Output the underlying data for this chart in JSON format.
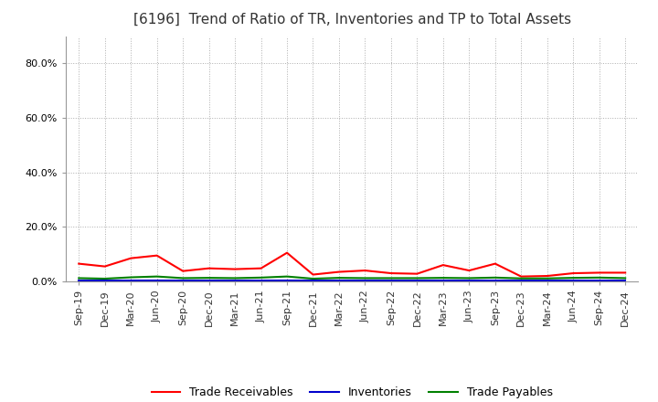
{
  "title": "[6196]  Trend of Ratio of TR, Inventories and TP to Total Assets",
  "labels": [
    "Sep-19",
    "Dec-19",
    "Mar-20",
    "Jun-20",
    "Sep-20",
    "Dec-20",
    "Mar-21",
    "Jun-21",
    "Sep-21",
    "Dec-21",
    "Mar-22",
    "Jun-22",
    "Sep-22",
    "Dec-22",
    "Mar-23",
    "Jun-23",
    "Sep-23",
    "Dec-23",
    "Mar-24",
    "Jun-24",
    "Sep-24",
    "Dec-24"
  ],
  "trade_receivables": [
    0.065,
    0.055,
    0.085,
    0.095,
    0.038,
    0.048,
    0.045,
    0.048,
    0.105,
    0.025,
    0.035,
    0.04,
    0.03,
    0.028,
    0.06,
    0.04,
    0.065,
    0.018,
    0.02,
    0.03,
    0.032,
    0.032
  ],
  "inventories": [
    0.002,
    0.002,
    0.002,
    0.002,
    0.002,
    0.002,
    0.002,
    0.002,
    0.002,
    0.002,
    0.002,
    0.002,
    0.002,
    0.002,
    0.002,
    0.002,
    0.002,
    0.002,
    0.002,
    0.002,
    0.002,
    0.002
  ],
  "trade_payables": [
    0.012,
    0.01,
    0.015,
    0.018,
    0.012,
    0.013,
    0.012,
    0.014,
    0.018,
    0.01,
    0.013,
    0.012,
    0.012,
    0.012,
    0.013,
    0.012,
    0.014,
    0.011,
    0.011,
    0.013,
    0.014,
    0.012
  ],
  "tr_color": "#ff0000",
  "inv_color": "#0000cc",
  "tp_color": "#008000",
  "ylim_max": 0.9,
  "ytick_vals": [
    0.0,
    0.2,
    0.4,
    0.6,
    0.8
  ],
  "background_color": "#ffffff",
  "grid_color": "#999999",
  "title_fontsize": 11,
  "tick_fontsize": 8,
  "legend_fontsize": 9
}
